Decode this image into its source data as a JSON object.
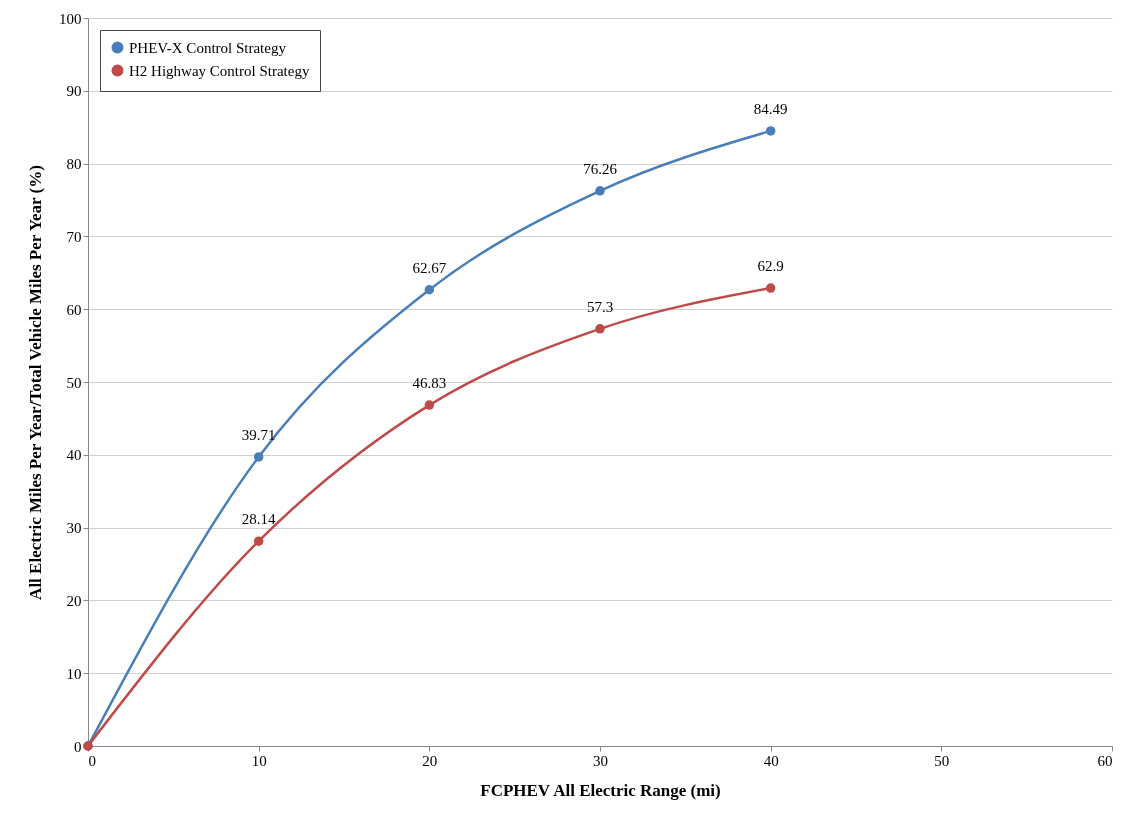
{
  "chart_data": {
    "type": "line",
    "xlabel": "FCPHEV All Electric Range (mi)",
    "ylabel": "All Electric Miles Per Year/Total Vehicle Miles Per Year (%)",
    "x": [
      0,
      10,
      20,
      30,
      40
    ],
    "series": [
      {
        "name": "PHEV-X Control Strategy",
        "color": "#4a7ebb",
        "values": [
          0,
          39.71,
          62.67,
          76.26,
          84.49
        ],
        "value_labels": [
          null,
          "39.71",
          "62.67",
          "76.26",
          "84.49"
        ]
      },
      {
        "name": "H2 Highway Control Strategy",
        "color": "#be4b48",
        "values": [
          0,
          28.14,
          46.83,
          57.3,
          62.9
        ],
        "value_labels": [
          null,
          "28.14",
          "46.83",
          "57.3",
          "62.9"
        ]
      }
    ],
    "xlim": [
      0,
      60
    ],
    "xticks": [
      0,
      10,
      20,
      30,
      40,
      50,
      60
    ],
    "ylim": [
      0,
      100
    ],
    "yticks": [
      0,
      10,
      20,
      30,
      40,
      50,
      60,
      70,
      80,
      90,
      100
    ],
    "grid": "y",
    "legend": "top left",
    "marker": "circle",
    "line_style": "solid"
  }
}
